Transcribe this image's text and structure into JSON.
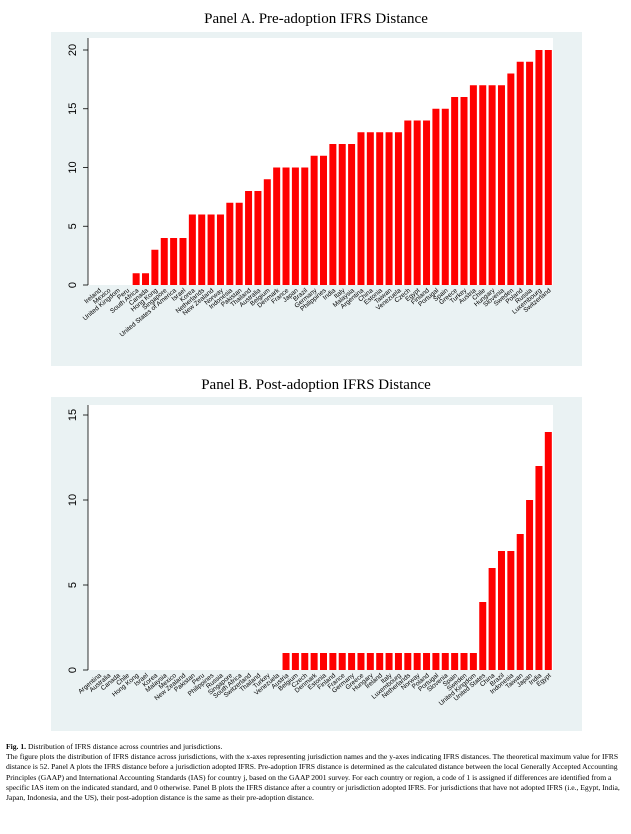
{
  "chart_data": [
    {
      "type": "bar",
      "title": "Panel A. Pre-adoption IFRS Distance",
      "color": "#ff0000",
      "categories": [
        "Ireland",
        "Mexico",
        "United Kingdom",
        "Peru",
        "South Africa",
        "Canada",
        "Hong Kong",
        "Singapore",
        "United States of America",
        "Israel",
        "Korea",
        "Netherlands",
        "New Zealand",
        "Norway",
        "Indonesia",
        "Pakistan",
        "Thailand",
        "Australia",
        "Belgium",
        "Denmark",
        "France",
        "Japan",
        "Brazil",
        "Germany",
        "Philippines",
        "India",
        "Italy",
        "Malaysia",
        "Argentina",
        "China",
        "Estonia",
        "Taiwan",
        "Venezuela",
        "Czech",
        "Egypt",
        "Finland",
        "Portugal",
        "Spain",
        "Greece",
        "Turkey",
        "Austria",
        "Chile",
        "Hungary",
        "Slovenia",
        "Sweden",
        "Poland",
        "Russia",
        "Luxembourg",
        "Switzerland"
      ],
      "values": [
        0,
        0,
        0,
        0,
        1,
        1,
        3,
        4,
        4,
        4,
        6,
        6,
        6,
        6,
        7,
        7,
        8,
        8,
        9,
        10,
        10,
        10,
        10,
        11,
        11,
        12,
        12,
        12,
        13,
        13,
        13,
        13,
        13,
        14,
        14,
        14,
        15,
        15,
        16,
        16,
        17,
        17,
        17,
        17,
        18,
        19,
        19,
        20,
        20
      ],
      "ylim": [
        0,
        20
      ],
      "yticks": [
        0,
        5,
        10,
        15,
        20
      ]
    },
    {
      "type": "bar",
      "title": "Panel B. Post-adoption IFRS Distance",
      "color": "#ff0000",
      "categories": [
        "Argentina",
        "Australia",
        "Canada",
        "Chile",
        "Hong Kong",
        "Israel",
        "Korea",
        "Malaysia",
        "Mexico",
        "New Zealand",
        "Pakistan",
        "Peru",
        "Philippines",
        "Russia",
        "Singapore",
        "South Africa",
        "Switzerland",
        "Thailand",
        "Turkey",
        "Venezuela",
        "Austria",
        "Belgium",
        "Czech",
        "Denmark",
        "Estonia",
        "Finland",
        "France",
        "Germany",
        "Greece",
        "Hungary",
        "Ireland",
        "Italy",
        "Luxembourg",
        "Netherlands",
        "Norway",
        "Poland",
        "Portugal",
        "Slovenia",
        "Spain",
        "Sweden",
        "United Kingdom",
        "United States",
        "China",
        "Brazil",
        "Indonesia",
        "Taiwan",
        "Japan",
        "India",
        "Egypt"
      ],
      "values": [
        0,
        0,
        0,
        0,
        0,
        0,
        0,
        0,
        0,
        0,
        0,
        0,
        0,
        0,
        0,
        0,
        0,
        0,
        0,
        0,
        1,
        1,
        1,
        1,
        1,
        1,
        1,
        1,
        1,
        1,
        1,
        1,
        1,
        1,
        1,
        1,
        1,
        1,
        1,
        1,
        1,
        4,
        6,
        7,
        7,
        8,
        10,
        12,
        14
      ],
      "ylim": [
        0,
        15
      ],
      "yticks": [
        0,
        5,
        10,
        15
      ]
    }
  ],
  "caption": {
    "label": "Fig. 1.",
    "title": "Distribution of IFRS distance across countries and jurisdictions.",
    "text": "The figure plots the distribution of IFRS distance across jurisdictions, with the x-axes representing jurisdiction names and the y-axes indicating IFRS distances. The theoretical maximum value for IFRS distance is 52. Panel A plots the IFRS distance before a jurisdiction adopted IFRS. Pre-adoption IFRS distance is determined as the calculated distance between the local Generally Accepted Accounting Principles (GAAP) and International Accounting Standards (IAS) for country j, based on the GAAP 2001 survey. For each country or region, a code of 1 is assigned if differences are identified from a specific IAS item on the indicated standard, and 0 otherwise. Panel B plots the IFRS distance after a country or jurisdiction adopted IFRS. For jurisdictions that have not adopted IFRS (i.e., Egypt, India, Japan, Indonesia, and the US), their post-adoption distance is the same as their pre-adoption distance."
  }
}
